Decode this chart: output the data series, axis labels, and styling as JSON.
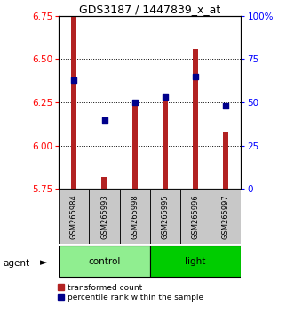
{
  "title": "GDS3187 / 1447839_x_at",
  "samples": [
    "GSM265984",
    "GSM265993",
    "GSM265998",
    "GSM265995",
    "GSM265996",
    "GSM265997"
  ],
  "groups": [
    "control",
    "control",
    "control",
    "light",
    "light",
    "light"
  ],
  "red_values": [
    6.75,
    5.82,
    6.25,
    6.27,
    6.56,
    6.08
  ],
  "blue_values": [
    63,
    40,
    50,
    53,
    65,
    48
  ],
  "ymin": 5.75,
  "ymax": 6.75,
  "yticks": [
    5.75,
    6.0,
    6.25,
    6.5,
    6.75
  ],
  "right_yticks": [
    0,
    25,
    50,
    75,
    100
  ],
  "right_ylabels": [
    "0",
    "25",
    "50",
    "75",
    "100%"
  ],
  "bar_color": "#B22222",
  "dot_color": "#00008B",
  "control_color": "#90EE90",
  "light_color": "#00CC00",
  "sample_box_color": "#C8C8C8",
  "agent_label": "agent",
  "legend_bar_label": "transformed count",
  "legend_dot_label": "percentile rank within the sample"
}
